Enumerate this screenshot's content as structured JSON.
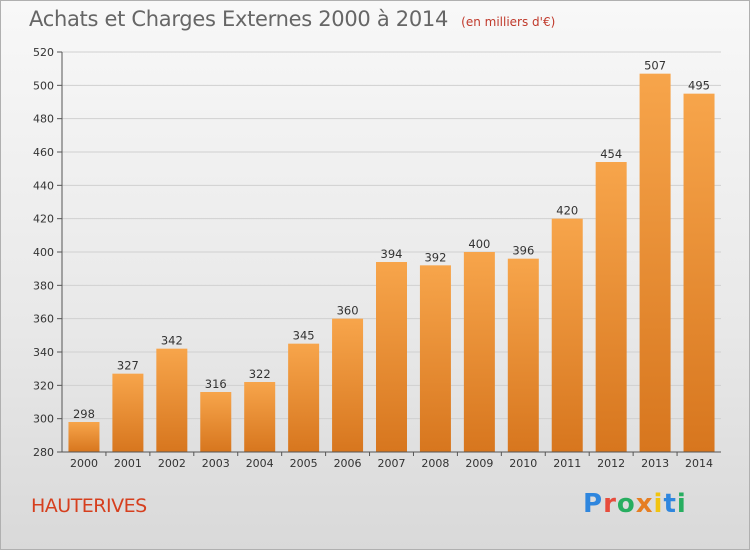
{
  "header": {
    "title": "Achats et Charges Externes 2000 à 2014",
    "subtitle": "(en milliers d'€)"
  },
  "footer": {
    "commune": "HAUTERIVES",
    "logo_letters": [
      "P",
      "r",
      "o",
      "x",
      "i",
      "t",
      "i"
    ],
    "logo_colors": [
      "#2e86de",
      "#e74c3c",
      "#27ae60",
      "#e67e22",
      "#f1c40f",
      "#2e86de",
      "#27ae60"
    ]
  },
  "colors": {
    "bar_light": "#f7a54b",
    "bar_dark": "#d7761e",
    "title": "#666666",
    "commune": "#d63f1e"
  },
  "chart_data": {
    "type": "bar",
    "title": "Achats et Charges Externes 2000 à 2014",
    "subtitle": "(en milliers d'€)",
    "categories": [
      "2000",
      "2001",
      "2002",
      "2003",
      "2004",
      "2005",
      "2006",
      "2007",
      "2008",
      "2009",
      "2010",
      "2011",
      "2012",
      "2013",
      "2014"
    ],
    "values": [
      298,
      327,
      342,
      316,
      322,
      345,
      360,
      394,
      392,
      400,
      396,
      420,
      454,
      507,
      495
    ],
    "ylim": [
      280,
      520
    ],
    "yticks": [
      280,
      300,
      320,
      340,
      360,
      380,
      400,
      420,
      440,
      460,
      480,
      500,
      520
    ],
    "grid": true,
    "legend": "none"
  }
}
